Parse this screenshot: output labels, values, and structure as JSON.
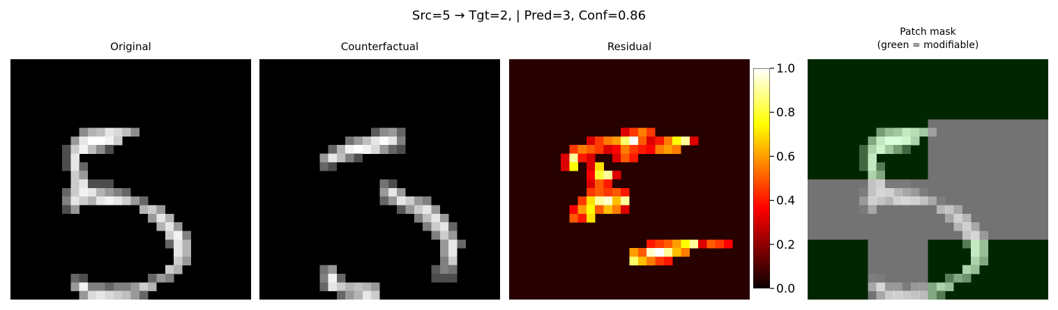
{
  "figure": {
    "suptitle": "Src=5 → Tgt=2, | Pred=3, Conf=0.86"
  },
  "chart_data": [
    {
      "type": "heatmap",
      "title": "Original",
      "colormap": "gray",
      "grid_size": 28,
      "cells": [
        [
          8,
          8,
          0.55
        ],
        [
          9,
          8,
          0.7
        ],
        [
          10,
          8,
          0.75
        ],
        [
          11,
          8,
          0.9
        ],
        [
          12,
          8,
          0.85
        ],
        [
          13,
          8,
          0.75
        ],
        [
          14,
          8,
          0.55
        ],
        [
          7,
          9,
          0.6
        ],
        [
          8,
          9,
          0.9
        ],
        [
          9,
          9,
          1
        ],
        [
          10,
          9,
          1
        ],
        [
          11,
          9,
          0.95
        ],
        [
          12,
          9,
          0.8
        ],
        [
          6,
          10,
          0.3
        ],
        [
          7,
          10,
          0.8
        ],
        [
          8,
          10,
          0.95
        ],
        [
          9,
          10,
          0.75
        ],
        [
          10,
          10,
          0.55
        ],
        [
          11,
          10,
          0.3
        ],
        [
          6,
          11,
          0.3
        ],
        [
          7,
          11,
          0.9
        ],
        [
          6,
          12,
          0.3
        ],
        [
          7,
          12,
          0.9
        ],
        [
          8,
          12,
          0.4
        ],
        [
          7,
          13,
          0.8
        ],
        [
          8,
          13,
          0.6
        ],
        [
          7,
          14,
          0.8
        ],
        [
          8,
          14,
          0.9
        ],
        [
          9,
          14,
          0.3
        ],
        [
          10,
          14,
          0.3
        ],
        [
          11,
          14,
          0.3
        ],
        [
          6,
          15,
          0.4
        ],
        [
          7,
          15,
          0.8
        ],
        [
          8,
          15,
          0.95
        ],
        [
          9,
          15,
          0.9
        ],
        [
          10,
          15,
          0.7
        ],
        [
          11,
          15,
          0.6
        ],
        [
          12,
          15,
          0.5
        ],
        [
          13,
          15,
          0.4
        ],
        [
          6,
          16,
          0.5
        ],
        [
          7,
          16,
          0.9
        ],
        [
          8,
          16,
          0.8
        ],
        [
          9,
          16,
          0.7
        ],
        [
          10,
          16,
          0.9
        ],
        [
          11,
          16,
          0.95
        ],
        [
          12,
          16,
          0.9
        ],
        [
          13,
          16,
          0.8
        ],
        [
          14,
          16,
          0.6
        ],
        [
          15,
          16,
          0.4
        ],
        [
          6,
          17,
          0.3
        ],
        [
          7,
          17,
          0.6
        ],
        [
          15,
          17,
          0.7
        ],
        [
          16,
          17,
          0.8
        ],
        [
          17,
          17,
          0.6
        ],
        [
          16,
          18,
          0.6
        ],
        [
          17,
          18,
          0.9
        ],
        [
          18,
          18,
          0.7
        ],
        [
          17,
          19,
          0.7
        ],
        [
          18,
          19,
          0.9
        ],
        [
          19,
          19,
          0.6
        ],
        [
          18,
          20,
          0.8
        ],
        [
          19,
          20,
          0.95
        ],
        [
          20,
          20,
          0.5
        ],
        [
          18,
          21,
          0.4
        ],
        [
          19,
          21,
          0.9
        ],
        [
          20,
          21,
          0.7
        ],
        [
          19,
          22,
          0.9
        ],
        [
          20,
          22,
          0.7
        ],
        [
          19,
          23,
          0.8
        ],
        [
          20,
          23,
          0.6
        ],
        [
          18,
          24,
          0.8
        ],
        [
          19,
          24,
          0.7
        ],
        [
          7,
          25,
          0.4
        ],
        [
          8,
          25,
          0.3
        ],
        [
          16,
          25,
          0.4
        ],
        [
          17,
          25,
          0.6
        ],
        [
          18,
          25,
          0.5
        ],
        [
          7,
          26,
          0.6
        ],
        [
          8,
          26,
          0.95
        ],
        [
          9,
          26,
          0.5
        ],
        [
          10,
          26,
          0.5
        ],
        [
          11,
          26,
          0.4
        ],
        [
          12,
          26,
          0.5
        ],
        [
          13,
          26,
          0.5
        ],
        [
          14,
          26,
          0.6
        ],
        [
          15,
          26,
          0.8
        ],
        [
          16,
          26,
          0.7
        ],
        [
          8,
          27,
          0.6
        ],
        [
          9,
          27,
          0.85
        ],
        [
          10,
          27,
          0.9
        ],
        [
          11,
          27,
          0.85
        ],
        [
          12,
          27,
          0.8
        ],
        [
          13,
          27,
          0.75
        ],
        [
          14,
          27,
          0.6
        ],
        [
          15,
          27,
          0.4
        ]
      ]
    },
    {
      "type": "heatmap",
      "title": "Counterfactual",
      "colormap": "gray",
      "grid_size": 28,
      "cells": [
        [
          13,
          8,
          0.35
        ],
        [
          14,
          8,
          0.55
        ],
        [
          15,
          8,
          0.6
        ],
        [
          16,
          8,
          0.4
        ],
        [
          10,
          9,
          0.45
        ],
        [
          11,
          9,
          0.6
        ],
        [
          12,
          9,
          0.75
        ],
        [
          13,
          9,
          0.9
        ],
        [
          14,
          9,
          1
        ],
        [
          15,
          9,
          0.9
        ],
        [
          16,
          9,
          0.5
        ],
        [
          8,
          10,
          0.4
        ],
        [
          9,
          10,
          0.7
        ],
        [
          10,
          10,
          0.95
        ],
        [
          11,
          10,
          1
        ],
        [
          12,
          10,
          0.95
        ],
        [
          13,
          10,
          0.85
        ],
        [
          14,
          10,
          0.6
        ],
        [
          15,
          10,
          0.4
        ],
        [
          16,
          10,
          0.3
        ],
        [
          7,
          11,
          0.6
        ],
        [
          8,
          11,
          0.9
        ],
        [
          9,
          11,
          0.75
        ],
        [
          10,
          11,
          0.5
        ],
        [
          11,
          11,
          0.3
        ],
        [
          7,
          12,
          0.4
        ],
        [
          8,
          12,
          0.3
        ],
        [
          14,
          14,
          0.45
        ],
        [
          15,
          14,
          0.3
        ],
        [
          14,
          15,
          0.6
        ],
        [
          15,
          15,
          0.9
        ],
        [
          16,
          15,
          0.6
        ],
        [
          14,
          16,
          0.4
        ],
        [
          15,
          16,
          0.6
        ],
        [
          16,
          16,
          0.9
        ],
        [
          17,
          16,
          0.8
        ],
        [
          18,
          16,
          0.6
        ],
        [
          19,
          16,
          0.5
        ],
        [
          16,
          17,
          0.35
        ],
        [
          17,
          17,
          0.6
        ],
        [
          18,
          17,
          0.8
        ],
        [
          19,
          17,
          0.9
        ],
        [
          20,
          17,
          0.6
        ],
        [
          18,
          18,
          0.5
        ],
        [
          19,
          18,
          0.75
        ],
        [
          20,
          18,
          0.9
        ],
        [
          21,
          18,
          0.6
        ],
        [
          19,
          19,
          0.5
        ],
        [
          20,
          19,
          0.8
        ],
        [
          21,
          19,
          0.9
        ],
        [
          22,
          19,
          0.4
        ],
        [
          20,
          20,
          0.5
        ],
        [
          21,
          20,
          0.8
        ],
        [
          22,
          20,
          0.6
        ],
        [
          21,
          21,
          0.6
        ],
        [
          22,
          21,
          0.9
        ],
        [
          23,
          21,
          0.4
        ],
        [
          21,
          22,
          0.6
        ],
        [
          22,
          22,
          0.9
        ],
        [
          21,
          23,
          0.5
        ],
        [
          22,
          23,
          0.8
        ],
        [
          7,
          24,
          0.45
        ],
        [
          8,
          24,
          0.6
        ],
        [
          20,
          24,
          0.35
        ],
        [
          21,
          24,
          0.5
        ],
        [
          22,
          24,
          0.45
        ],
        [
          7,
          25,
          0.5
        ],
        [
          8,
          25,
          0.95
        ],
        [
          9,
          25,
          0.4
        ],
        [
          20,
          25,
          0.3
        ],
        [
          21,
          25,
          0.3
        ],
        [
          22,
          25,
          0.3
        ],
        [
          7,
          26,
          0.4
        ],
        [
          8,
          26,
          0.9
        ],
        [
          9,
          26,
          0.8
        ],
        [
          10,
          26,
          0.7
        ],
        [
          11,
          26,
          0.75
        ],
        [
          12,
          26,
          0.7
        ],
        [
          13,
          26,
          0.6
        ],
        [
          9,
          27,
          0.4
        ],
        [
          10,
          27,
          0.6
        ],
        [
          11,
          27,
          0.7
        ],
        [
          12,
          27,
          0.9
        ],
        [
          13,
          27,
          0.8
        ]
      ]
    },
    {
      "type": "heatmap",
      "title": "Residual",
      "colormap": "hot",
      "grid_size": 28,
      "vmin": 0,
      "vmax": 1,
      "background_value": 0.04,
      "cells": [
        [
          13,
          8,
          0.3
        ],
        [
          14,
          8,
          0.45
        ],
        [
          15,
          8,
          0.55
        ],
        [
          16,
          8,
          0.45
        ],
        [
          9,
          9,
          0.3
        ],
        [
          10,
          9,
          0.45
        ],
        [
          11,
          9,
          0.55
        ],
        [
          12,
          9,
          0.6
        ],
        [
          13,
          9,
          0.85
        ],
        [
          14,
          9,
          1
        ],
        [
          15,
          9,
          0.5
        ],
        [
          16,
          9,
          0.3
        ],
        [
          17,
          9,
          0.4
        ],
        [
          18,
          9,
          0.55
        ],
        [
          19,
          9,
          0.75
        ],
        [
          20,
          9,
          0.9
        ],
        [
          21,
          9,
          0.3
        ],
        [
          7,
          10,
          0.45
        ],
        [
          8,
          10,
          0.55
        ],
        [
          9,
          10,
          0.5
        ],
        [
          10,
          10,
          0.45
        ],
        [
          11,
          10,
          0.3
        ],
        [
          12,
          10,
          0.35
        ],
        [
          13,
          10,
          0.55
        ],
        [
          14,
          10,
          0.45
        ],
        [
          15,
          10,
          0.4
        ],
        [
          16,
          10,
          0.35
        ],
        [
          17,
          10,
          0.55
        ],
        [
          18,
          10,
          0.6
        ],
        [
          19,
          10,
          0.55
        ],
        [
          6,
          11,
          0.3
        ],
        [
          7,
          11,
          0.9
        ],
        [
          8,
          11,
          0.4
        ],
        [
          9,
          11,
          0.3
        ],
        [
          12,
          11,
          0.3
        ],
        [
          13,
          11,
          0.5
        ],
        [
          14,
          11,
          0.4
        ],
        [
          6,
          12,
          0.3
        ],
        [
          7,
          12,
          0.75
        ],
        [
          9,
          12,
          0.3
        ],
        [
          10,
          12,
          0.7
        ],
        [
          9,
          13,
          0.35
        ],
        [
          10,
          13,
          0.8
        ],
        [
          11,
          13,
          0.9
        ],
        [
          12,
          13,
          0.3
        ],
        [
          9,
          14,
          0.3
        ],
        [
          10,
          14,
          0.5
        ],
        [
          11,
          14,
          0.4
        ],
        [
          9,
          15,
          0.45
        ],
        [
          10,
          15,
          0.5
        ],
        [
          11,
          15,
          0.45
        ],
        [
          12,
          15,
          0.5
        ],
        [
          13,
          15,
          0.4
        ],
        [
          8,
          16,
          0.45
        ],
        [
          9,
          16,
          0.7
        ],
        [
          10,
          16,
          0.9
        ],
        [
          11,
          16,
          0.95
        ],
        [
          12,
          16,
          0.65
        ],
        [
          13,
          16,
          0.9
        ],
        [
          7,
          17,
          0.35
        ],
        [
          8,
          17,
          0.6
        ],
        [
          9,
          17,
          0.75
        ],
        [
          10,
          17,
          0.5
        ],
        [
          11,
          17,
          0.65
        ],
        [
          12,
          17,
          0.55
        ],
        [
          13,
          17,
          0.3
        ],
        [
          7,
          18,
          0.5
        ],
        [
          8,
          18,
          0.4
        ],
        [
          9,
          18,
          0.7
        ],
        [
          16,
          21,
          0.4
        ],
        [
          17,
          21,
          0.45
        ],
        [
          18,
          21,
          0.5
        ],
        [
          19,
          21,
          0.6
        ],
        [
          20,
          21,
          0.75
        ],
        [
          21,
          21,
          0.9
        ],
        [
          22,
          21,
          0.3
        ],
        [
          23,
          21,
          0.5
        ],
        [
          24,
          21,
          0.45
        ],
        [
          25,
          21,
          0.35
        ],
        [
          14,
          22,
          0.6
        ],
        [
          15,
          22,
          0.5
        ],
        [
          16,
          22,
          0.95
        ],
        [
          17,
          22,
          1
        ],
        [
          18,
          22,
          0.9
        ],
        [
          19,
          22,
          0.65
        ],
        [
          20,
          22,
          0.55
        ],
        [
          14,
          23,
          0.85
        ],
        [
          15,
          23,
          0.65
        ],
        [
          16,
          23,
          0.55
        ],
        [
          17,
          23,
          0.45
        ],
        [
          18,
          23,
          0.4
        ]
      ]
    },
    {
      "type": "heatmap",
      "title": "Patch mask\n(green = modifiable)",
      "overlay_of": "Original",
      "grid_size": 28,
      "modifiable_color": "#00ff00",
      "masked_color": "#808080",
      "modifiable_blocks": [
        [
          0,
          0,
          14,
          7
        ],
        [
          14,
          0,
          14,
          7
        ],
        [
          0,
          7,
          14,
          7
        ],
        [
          0,
          21,
          7,
          7
        ],
        [
          14,
          21,
          14,
          7
        ]
      ],
      "masked_blocks": [
        [
          14,
          7,
          14,
          7
        ],
        [
          0,
          14,
          14,
          7
        ],
        [
          14,
          14,
          14,
          7
        ],
        [
          7,
          21,
          7,
          7
        ]
      ]
    },
    {
      "type": "colorbar",
      "colormap": "hot",
      "range": [
        0,
        1
      ],
      "ticks": [
        "0.0",
        "0.2",
        "0.4",
        "0.6",
        "0.8",
        "1.0"
      ]
    }
  ]
}
